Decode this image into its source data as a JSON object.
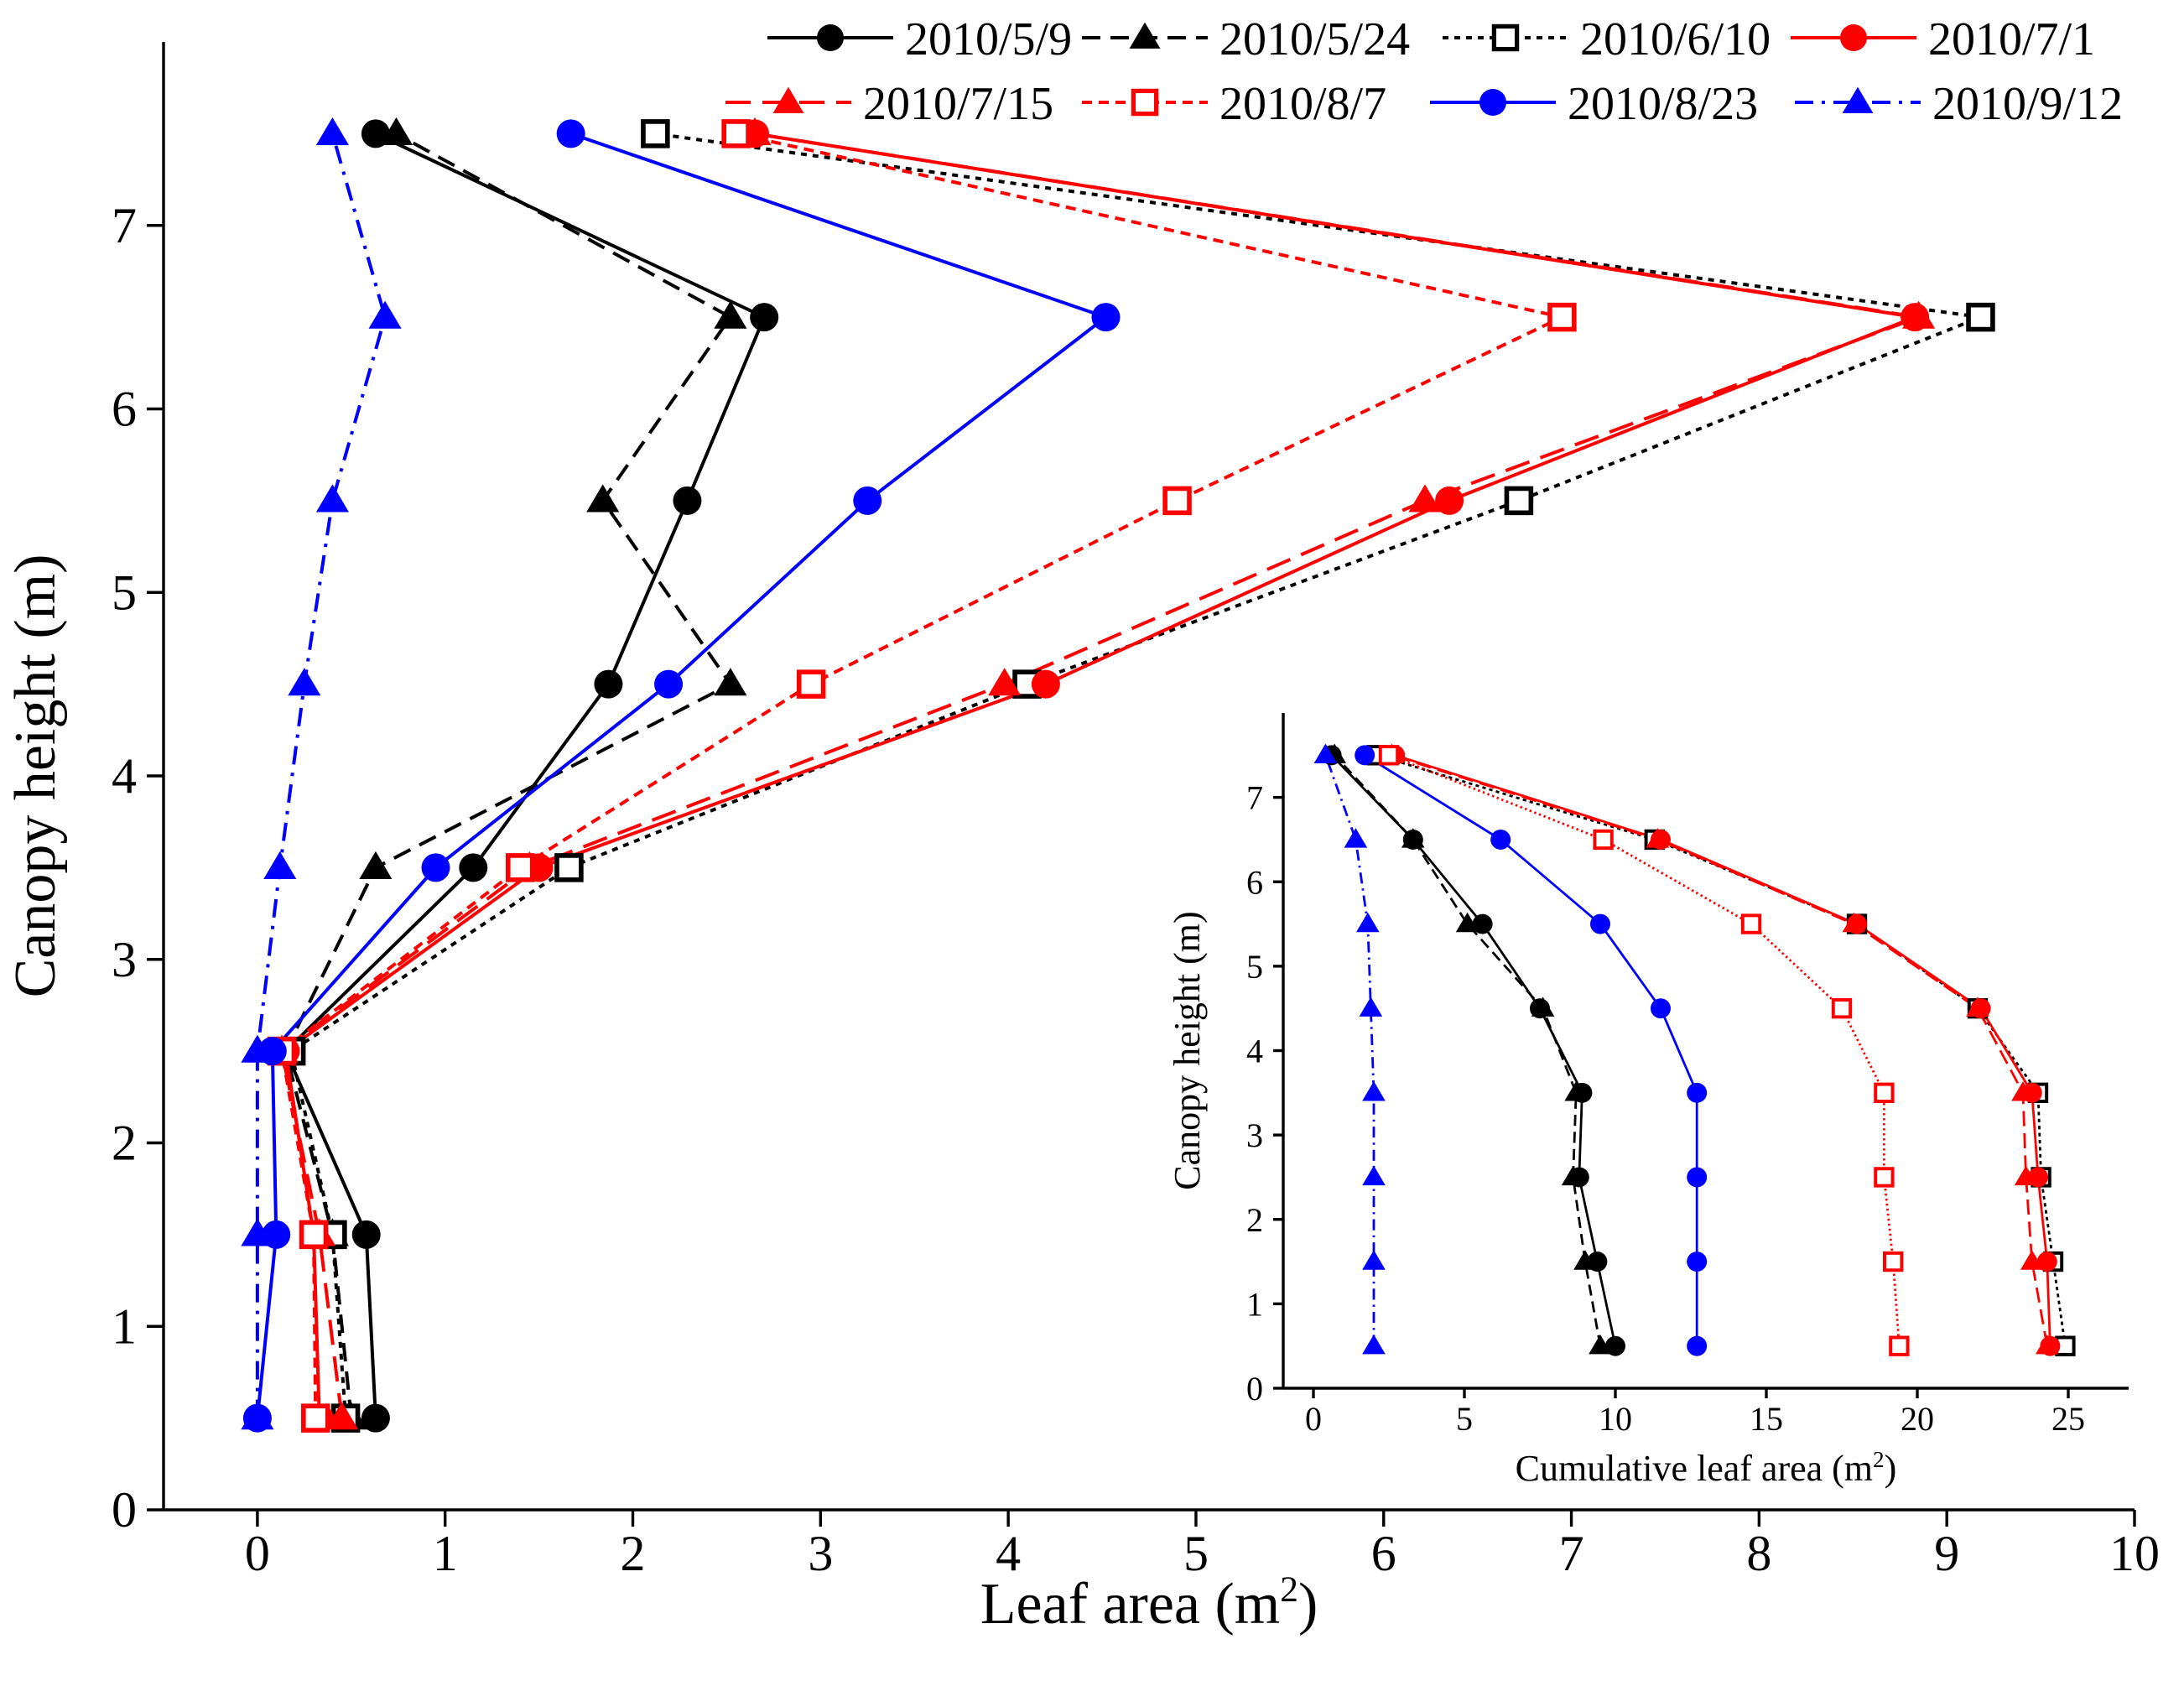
{
  "chart_data": [
    {
      "type": "line",
      "title": "",
      "xlabel": "Leaf area (m",
      "xlabel_sup": "2",
      "xlabel_close": ")",
      "ylabel": "Canopy height (m)",
      "xlim": [
        -0.5,
        10
      ],
      "ylim": [
        0,
        8
      ],
      "xticks": [
        "0",
        "1",
        "2",
        "3",
        "4",
        "5",
        "6",
        "7",
        "8",
        "9",
        "10"
      ],
      "yticks": [
        "0",
        "1",
        "2",
        "3",
        "4",
        "5",
        "6",
        "7"
      ],
      "y": [
        0.5,
        1.5,
        2.5,
        3.5,
        4.5,
        5.5,
        6.5,
        7.5
      ],
      "legend_position": "top",
      "series": [
        {
          "name": "2010/5/9",
          "color": "#000000",
          "marker": "circle",
          "dash": "solid",
          "x": [
            0.63,
            0.58,
            0.15,
            1.15,
            1.87,
            2.29,
            2.7,
            0.63
          ]
        },
        {
          "name": "2010/5/24",
          "color": "#000000",
          "marker": "triangle",
          "dash": "dash",
          "x": [
            0.5,
            0.4,
            0.15,
            0.63,
            2.52,
            1.84,
            2.52,
            0.74
          ]
        },
        {
          "name": "2010/6/10",
          "color": "#000000",
          "marker": "square-open",
          "dash": "dot",
          "x": [
            0.47,
            0.4,
            0.18,
            1.66,
            4.1,
            6.72,
            9.18,
            2.12
          ]
        },
        {
          "name": "2010/7/1",
          "color": "#ff0000",
          "marker": "circle",
          "dash": "solid",
          "x": [
            0.33,
            0.3,
            0.15,
            1.5,
            4.2,
            6.35,
            8.83,
            2.65
          ]
        },
        {
          "name": "2010/7/15",
          "color": "#ff0000",
          "marker": "triangle",
          "dash": "longdash",
          "x": [
            0.45,
            0.33,
            0.13,
            1.45,
            3.98,
            6.22,
            8.85,
            2.65
          ]
        },
        {
          "name": "2010/8/7",
          "color": "#ff0000",
          "marker": "square-open",
          "dash": "shortdash",
          "x": [
            0.31,
            0.3,
            0.13,
            1.4,
            2.95,
            4.9,
            6.95,
            2.55
          ]
        },
        {
          "name": "2010/8/23",
          "color": "#0000ff",
          "marker": "circle",
          "dash": "solid",
          "x": [
            0.0,
            0.1,
            0.08,
            0.95,
            2.19,
            3.25,
            4.52,
            1.67
          ]
        },
        {
          "name": "2010/9/12",
          "color": "#0000ff",
          "marker": "triangle",
          "dash": "dashdot",
          "x": [
            0.0,
            0.0,
            0.0,
            0.12,
            0.25,
            0.4,
            0.68,
            0.4
          ]
        }
      ]
    },
    {
      "type": "line",
      "title": "",
      "xlabel": "Cumulative leaf area (m",
      "xlabel_sup": "2",
      "xlabel_close": ")",
      "ylabel": "Canopy height (m)",
      "xlim": [
        -1,
        27
      ],
      "ylim": [
        0,
        8
      ],
      "xticks": [
        "0",
        "5",
        "10",
        "15",
        "20",
        "25"
      ],
      "yticks": [
        "0",
        "1",
        "2",
        "3",
        "4",
        "5",
        "6",
        "7"
      ],
      "y": [
        0.5,
        1.5,
        2.5,
        3.5,
        4.5,
        5.5,
        6.5,
        7.5
      ],
      "series": [
        {
          "name": "2010/5/9",
          "color": "#000000",
          "marker": "circle",
          "dash": "solid",
          "x": [
            10.0,
            9.4,
            8.8,
            8.9,
            7.5,
            5.6,
            3.3,
            0.6
          ]
        },
        {
          "name": "2010/5/24",
          "color": "#000000",
          "marker": "triangle",
          "dash": "dash",
          "x": [
            9.5,
            9.0,
            8.6,
            8.7,
            7.6,
            5.1,
            3.3,
            0.7
          ]
        },
        {
          "name": "2010/6/10",
          "color": "#000000",
          "marker": "square-open",
          "dash": "dot",
          "x": [
            24.9,
            24.5,
            24.1,
            24.0,
            22.0,
            18.0,
            11.3,
            2.1
          ]
        },
        {
          "name": "2010/7/1",
          "color": "#ff0000",
          "marker": "circle",
          "dash": "solid",
          "x": [
            24.4,
            24.3,
            24.0,
            23.8,
            22.1,
            18.0,
            11.5,
            2.7
          ]
        },
        {
          "name": "2010/7/15",
          "color": "#ff0000",
          "marker": "triangle",
          "dash": "longdash",
          "x": [
            24.3,
            23.8,
            23.6,
            23.5,
            22.0,
            17.9,
            11.4,
            2.6
          ]
        },
        {
          "name": "2010/8/7",
          "color": "#ff0000",
          "marker": "square-open",
          "dash": "shortdot",
          "x": [
            19.4,
            19.2,
            18.9,
            18.9,
            17.5,
            14.5,
            9.6,
            2.5
          ]
        },
        {
          "name": "2010/8/23",
          "color": "#0000ff",
          "marker": "circle",
          "dash": "solid",
          "x": [
            12.7,
            12.7,
            12.7,
            12.7,
            11.5,
            9.5,
            6.2,
            1.7
          ]
        },
        {
          "name": "2010/9/12",
          "color": "#0000ff",
          "marker": "triangle",
          "dash": "dashdot",
          "x": [
            2.0,
            2.0,
            2.0,
            2.0,
            1.9,
            1.8,
            1.4,
            0.4
          ]
        }
      ]
    }
  ]
}
